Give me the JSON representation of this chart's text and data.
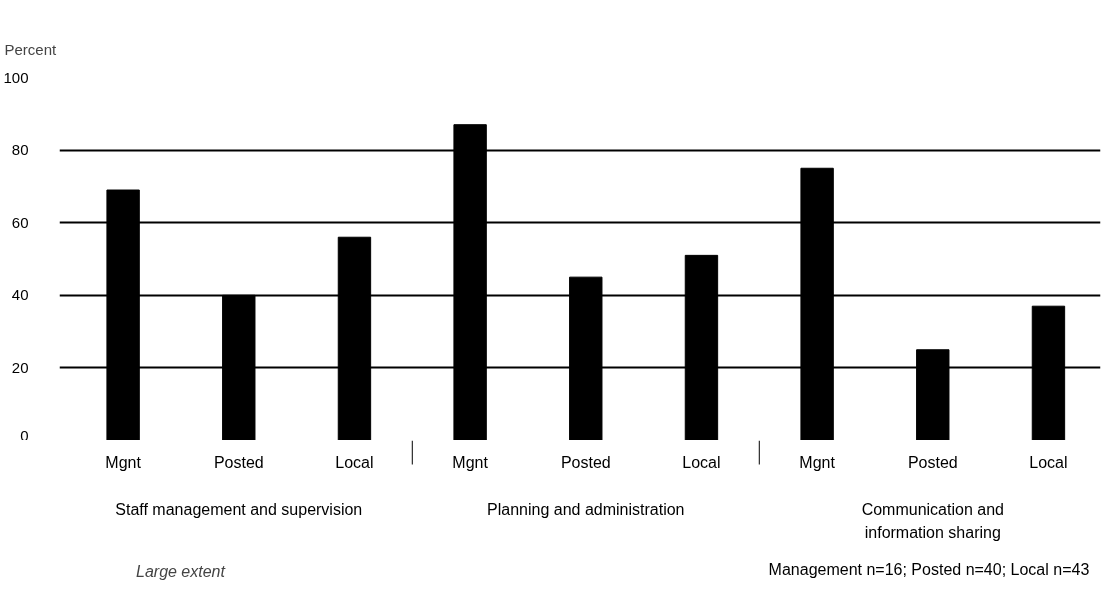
{
  "chart_data": {
    "type": "bar",
    "ylabel": "Percent",
    "categories": [
      "Mgnt",
      "Posted",
      "Local",
      "Mgnt",
      "Posted",
      "Local",
      "Mgnt",
      "Posted",
      "Local"
    ],
    "series": [
      {
        "name": "Large extent",
        "color": "#000000",
        "values": [
          69,
          40,
          56,
          87,
          45,
          51,
          75,
          25,
          37
        ]
      }
    ],
    "ylim": [
      0,
      100
    ],
    "yticks": [
      0,
      20,
      40,
      60,
      80,
      100
    ],
    "grid": "y",
    "legend": "bottom left",
    "annotations": [
      "Staff management and supervision",
      "Planning and administration",
      "Communication and\ninformation sharing",
      "Management n=16;  Posted n=40;  Local n=43"
    ]
  }
}
